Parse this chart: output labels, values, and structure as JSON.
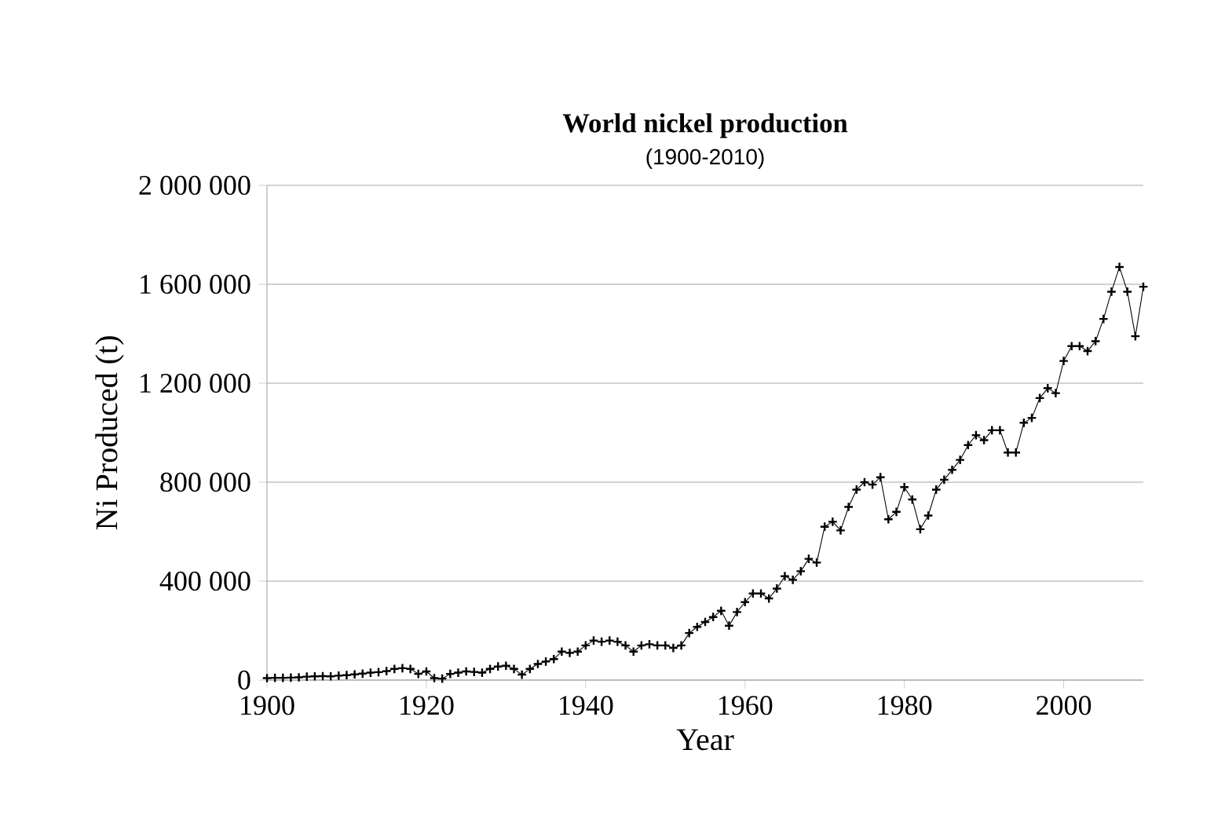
{
  "chart_data": {
    "type": "line",
    "title": "World nickel production",
    "subtitle": "(1900-2010)",
    "xlabel": "Year",
    "ylabel": "Ni Produced (t)",
    "x": [
      1900,
      1901,
      1902,
      1903,
      1904,
      1905,
      1906,
      1907,
      1908,
      1909,
      1910,
      1911,
      1912,
      1913,
      1914,
      1915,
      1916,
      1917,
      1918,
      1919,
      1920,
      1921,
      1922,
      1923,
      1924,
      1925,
      1926,
      1927,
      1928,
      1929,
      1930,
      1931,
      1932,
      1933,
      1934,
      1935,
      1936,
      1937,
      1938,
      1939,
      1940,
      1941,
      1942,
      1943,
      1944,
      1945,
      1946,
      1947,
      1948,
      1949,
      1950,
      1951,
      1952,
      1953,
      1954,
      1955,
      1956,
      1957,
      1958,
      1959,
      1960,
      1961,
      1962,
      1963,
      1964,
      1965,
      1966,
      1967,
      1968,
      1969,
      1970,
      1971,
      1972,
      1973,
      1974,
      1975,
      1976,
      1977,
      1978,
      1979,
      1980,
      1981,
      1982,
      1983,
      1984,
      1985,
      1986,
      1987,
      1988,
      1989,
      1990,
      1991,
      1992,
      1993,
      1994,
      1995,
      1996,
      1997,
      1998,
      1999,
      2000,
      2001,
      2002,
      2003,
      2004,
      2005,
      2006,
      2007,
      2008,
      2009,
      2010
    ],
    "values": [
      8000,
      9000,
      9000,
      10000,
      11000,
      14000,
      15000,
      16000,
      15000,
      18000,
      20000,
      23000,
      26000,
      30000,
      32000,
      36000,
      45000,
      48000,
      45000,
      25000,
      35000,
      8000,
      6000,
      25000,
      30000,
      35000,
      33000,
      30000,
      45000,
      55000,
      58000,
      45000,
      22000,
      45000,
      65000,
      75000,
      85000,
      115000,
      110000,
      115000,
      140000,
      160000,
      155000,
      160000,
      155000,
      140000,
      115000,
      140000,
      145000,
      140000,
      140000,
      130000,
      140000,
      190000,
      215000,
      235000,
      255000,
      280000,
      220000,
      275000,
      315000,
      350000,
      350000,
      330000,
      370000,
      420000,
      405000,
      440000,
      490000,
      475000,
      620000,
      640000,
      605000,
      700000,
      770000,
      800000,
      790000,
      820000,
      650000,
      680000,
      780000,
      730000,
      610000,
      665000,
      770000,
      810000,
      850000,
      890000,
      950000,
      990000,
      970000,
      1010000,
      1010000,
      920000,
      920000,
      1040000,
      1060000,
      1140000,
      1180000,
      1160000,
      1290000,
      1350000,
      1350000,
      1330000,
      1370000,
      1460000,
      1570000,
      1670000,
      1570000,
      1390000,
      1590000
    ],
    "color": "#000000",
    "marker": "cross",
    "line_style": "solid",
    "grid": "y",
    "xlim": [
      1900,
      2010
    ],
    "xticks": [
      1900,
      1920,
      1940,
      1960,
      1980,
      2000
    ],
    "ylim": [
      0,
      2000000
    ],
    "yticks": [
      0,
      {
        "value": 400000,
        "label": "400 000"
      },
      {
        "value": 800000,
        "label": "800 000"
      },
      {
        "value": 1200000,
        "label": "1 200 000"
      },
      {
        "value": 1600000,
        "label": "1 600 000"
      },
      {
        "value": 2000000,
        "label": "2 000 000"
      }
    ]
  }
}
